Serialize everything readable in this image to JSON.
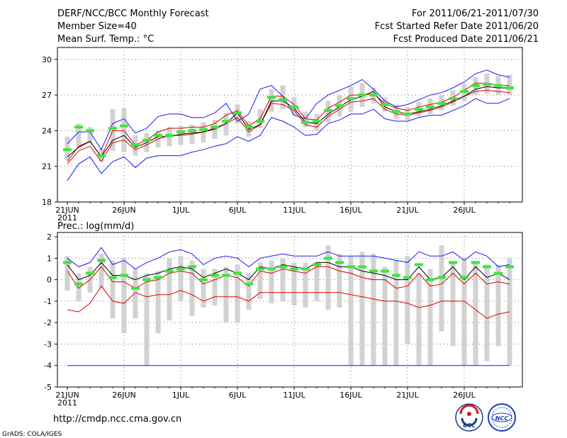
{
  "header": {
    "title": "DERF/NCC/BCC Monthly Forecast",
    "member_size": "Member Size=40",
    "variable": "Mean Surf. Temp.: °C",
    "period": "For 2011/06/21-2011/07/30",
    "refer_date": "Fcst Started Refer Date 2011/06/20",
    "produced_date": "Fcst Produced Date 2011/06/21"
  },
  "footer": {
    "url": "http://cmdp.ncc.cma.gov.cn",
    "credit": "GrADS: COLA/IGES",
    "logo_bcc": "BCC",
    "logo_ncc": "NCC"
  },
  "colors": {
    "box": "#d2d2d2",
    "green": "#3ce63c",
    "blue": "#1a1aee",
    "red": "#e00000",
    "black": "#000000",
    "grid": "#707070"
  },
  "chart_data": [
    {
      "type": "line",
      "title": "Mean Surf. Temp.: °C",
      "xlabel": "",
      "ylabel": "°C",
      "ylim": [
        18,
        31
      ],
      "yticks": [
        18,
        21,
        24,
        27,
        30
      ],
      "x_tick_labels": [
        "21JUN",
        "26JUN",
        "1JUL",
        "6JUL",
        "11JUL",
        "16JUL",
        "21JUL",
        "26JUL"
      ],
      "x_year_label": "2011",
      "days": 40,
      "series": [
        {
          "name": "ensemble box low",
          "values": [
            21.5,
            22.7,
            23.0,
            21.4,
            22.3,
            22.2,
            21.9,
            22.2,
            22.6,
            22.7,
            22.8,
            22.9,
            23.0,
            23.3,
            23.6,
            24.6,
            23.5,
            24.2,
            25.6,
            25.8,
            25.3,
            24.3,
            24.0,
            24.7,
            25.2,
            25.6,
            26.0,
            26.3,
            25.6,
            25.0,
            24.9,
            25.2,
            25.4,
            25.7,
            26.1,
            26.5,
            27.0,
            27.1,
            27.0,
            27.0
          ]
        },
        {
          "name": "ensemble box high",
          "values": [
            23.5,
            24.6,
            24.3,
            22.5,
            25.8,
            25.9,
            23.6,
            23.8,
            24.0,
            24.3,
            24.4,
            24.5,
            24.7,
            24.9,
            25.5,
            26.2,
            24.8,
            25.8,
            27.5,
            27.8,
            26.8,
            25.6,
            25.4,
            26.5,
            27.0,
            27.7,
            28.0,
            27.6,
            26.8,
            26.2,
            26.0,
            26.4,
            26.7,
            27.0,
            27.4,
            27.9,
            28.5,
            28.8,
            28.6,
            28.7
          ]
        },
        {
          "name": "ensemble mean (green)",
          "values": [
            22.4,
            24.3,
            24.0,
            21.9,
            24.2,
            24.4,
            22.8,
            23.2,
            23.6,
            23.6,
            23.9,
            24.0,
            24.1,
            24.3,
            24.8,
            25.5,
            24.3,
            24.8,
            26.8,
            26.6,
            26.0,
            24.7,
            24.8,
            25.7,
            26.1,
            26.7,
            27.0,
            27.0,
            26.2,
            25.6,
            25.4,
            25.8,
            26.0,
            26.3,
            26.7,
            27.3,
            27.8,
            27.9,
            27.8,
            27.6
          ]
        },
        {
          "name": "control (black)",
          "values": [
            21.8,
            22.6,
            23.1,
            21.8,
            23.2,
            23.6,
            22.6,
            23.0,
            23.5,
            23.5,
            23.7,
            23.8,
            23.9,
            24.2,
            24.6,
            25.5,
            24.1,
            24.5,
            26.5,
            26.5,
            25.9,
            24.7,
            24.6,
            25.4,
            26.0,
            26.6,
            26.9,
            27.3,
            26.0,
            25.6,
            25.4,
            25.6,
            25.8,
            26.1,
            26.5,
            26.9,
            27.5,
            27.7,
            27.6,
            27.6
          ]
        },
        {
          "name": "max (blue)",
          "values": [
            22.9,
            23.9,
            23.9,
            22.4,
            24.6,
            25.0,
            23.8,
            24.2,
            25.2,
            25.4,
            25.4,
            25.1,
            25.1,
            25.5,
            26.3,
            24.8,
            25.4,
            27.5,
            27.8,
            26.9,
            25.3,
            25.0,
            26.3,
            27.0,
            27.4,
            27.8,
            28.3,
            27.5,
            26.5,
            26.0,
            26.2,
            26.6,
            27.0,
            27.2,
            27.6,
            28.1,
            28.8,
            29.1,
            28.7,
            28.5
          ]
        },
        {
          "name": "min (blue)",
          "values": [
            19.8,
            21.2,
            21.8,
            20.4,
            21.4,
            21.8,
            20.9,
            21.7,
            21.9,
            21.9,
            21.9,
            22.2,
            22.4,
            22.7,
            22.9,
            23.5,
            23.1,
            23.6,
            25.1,
            24.8,
            24.3,
            23.6,
            23.7,
            24.6,
            24.9,
            25.4,
            25.4,
            25.8,
            25.0,
            24.8,
            24.8,
            25.1,
            25.3,
            25.3,
            25.7,
            26.1,
            26.7,
            26.3,
            26.3,
            26.7
          ]
        },
        {
          "name": "upper (red)",
          "values": [
            21.4,
            22.7,
            23.1,
            21.8,
            24.0,
            24.0,
            22.8,
            23.2,
            23.9,
            24.2,
            24.2,
            24.3,
            24.3,
            24.6,
            25.3,
            25.7,
            24.4,
            25.0,
            26.9,
            26.9,
            26.2,
            25.0,
            24.9,
            25.9,
            26.4,
            27.0,
            27.0,
            27.1,
            26.3,
            25.9,
            25.7,
            26.0,
            26.2,
            26.4,
            26.8,
            27.4,
            28.0,
            28.0,
            27.8,
            27.8
          ]
        },
        {
          "name": "lower (red)",
          "values": [
            21.2,
            22.3,
            22.7,
            21.4,
            23.0,
            23.2,
            22.4,
            22.8,
            23.3,
            23.6,
            23.6,
            23.7,
            23.9,
            24.1,
            24.6,
            25.1,
            23.9,
            24.5,
            26.3,
            26.2,
            25.7,
            24.5,
            24.3,
            25.2,
            25.8,
            26.4,
            26.5,
            26.7,
            25.8,
            25.4,
            25.3,
            25.5,
            25.7,
            26.0,
            26.4,
            26.9,
            27.3,
            27.4,
            27.3,
            27.2
          ]
        }
      ]
    },
    {
      "type": "line",
      "title": "Prec.: log(mm/d)",
      "xlabel": "",
      "ylabel": "log(mm/d)",
      "ylim": [
        -5,
        2.2
      ],
      "yticks": [
        -5,
        -4,
        -3,
        -2,
        -1,
        0,
        1,
        2
      ],
      "x_tick_labels": [
        "21JUN",
        "26JUN",
        "1JUL",
        "6JUL",
        "11JUL",
        "16JUL",
        "21JUL",
        "26JUL"
      ],
      "x_year_label": "2011",
      "days": 40,
      "series": [
        {
          "name": "ensemble box low",
          "values": [
            -0.5,
            -1.0,
            -0.6,
            -0.4,
            -1.8,
            -2.5,
            -1.8,
            -4.0,
            -2.5,
            -1.9,
            -1.0,
            -1.7,
            -1.3,
            -1.2,
            -2.0,
            -2.0,
            -1.4,
            -0.9,
            -1.1,
            -1.0,
            -1.2,
            -1.3,
            -1.0,
            -1.4,
            -1.3,
            -4.0,
            -4.0,
            -4.0,
            -4.0,
            -4.0,
            -3.0,
            -4.0,
            -4.0,
            -2.4,
            -3.1,
            -4.0,
            -4.0,
            -3.8,
            -3.1,
            -4.0
          ]
        },
        {
          "name": "ensemble box high",
          "values": [
            1.1,
            0.3,
            0.6,
            1.2,
            0.9,
            1.0,
            0.5,
            0.3,
            0.4,
            1.0,
            1.1,
            0.9,
            0.5,
            0.5,
            0.6,
            0.7,
            0.3,
            0.8,
            0.9,
            1.0,
            0.8,
            0.8,
            0.8,
            1.6,
            1.2,
            1.1,
            1.3,
            1.2,
            0.6,
            0.9,
            1.1,
            0.3,
            0.5,
            1.6,
            0.8,
            1.0,
            0.8,
            0.7,
            0.7,
            1.0
          ]
        },
        {
          "name": "ensemble mean (green)",
          "values": [
            0.8,
            -0.2,
            0.3,
            0.9,
            0.1,
            0.2,
            -0.4,
            0.0,
            0.1,
            0.4,
            0.5,
            0.6,
            0.0,
            0.2,
            0.2,
            0.3,
            -0.2,
            0.5,
            0.5,
            0.6,
            0.5,
            0.5,
            0.7,
            1.0,
            0.8,
            0.6,
            0.6,
            0.4,
            0.4,
            0.2,
            0.1,
            0.7,
            0.0,
            0.1,
            0.8,
            0.1,
            0.8,
            0.6,
            0.3,
            0.6
          ]
        },
        {
          "name": "control (black)",
          "values": [
            0.7,
            0.0,
            0.2,
            0.8,
            0.2,
            0.2,
            0.0,
            0.2,
            0.3,
            0.5,
            0.6,
            0.5,
            0.1,
            0.3,
            0.5,
            0.3,
            0.0,
            0.6,
            0.5,
            0.7,
            0.6,
            0.5,
            0.8,
            0.8,
            0.6,
            0.6,
            0.4,
            0.3,
            0.2,
            0.0,
            0.0,
            0.6,
            0.0,
            0.1,
            0.6,
            0.0,
            0.6,
            0.1,
            0.3,
            0.0
          ]
        },
        {
          "name": "max (blue)",
          "values": [
            1.0,
            0.6,
            0.8,
            1.5,
            0.7,
            0.9,
            0.5,
            0.8,
            1.0,
            1.3,
            1.4,
            1.2,
            0.7,
            1.0,
            1.1,
            1.0,
            0.6,
            1.0,
            1.1,
            1.2,
            1.1,
            1.1,
            1.1,
            1.3,
            1.1,
            1.1,
            1.1,
            1.1,
            1.0,
            0.9,
            0.8,
            1.3,
            1.1,
            1.1,
            1.3,
            0.9,
            1.3,
            1.1,
            0.6,
            0.7
          ]
        },
        {
          "name": "min (blue)",
          "values": [
            -4.0,
            -4.0,
            -4.0,
            -4.0,
            -4.0,
            -4.0,
            -4.0,
            -4.0,
            -4.0,
            -4.0,
            -4.0,
            -4.0,
            -4.0,
            -4.0,
            -4.0,
            -4.0,
            -4.0,
            -4.0,
            -4.0,
            -4.0,
            -4.0,
            -4.0,
            -4.0,
            -4.0,
            -4.0,
            -4.0,
            -4.0,
            -4.0,
            -4.0,
            -4.0,
            -4.0,
            -4.0,
            -4.0,
            -4.0,
            -4.0,
            -4.0,
            -4.0,
            -4.0,
            -4.0,
            -4.0
          ]
        },
        {
          "name": "upper (red)",
          "values": [
            0.4,
            -0.4,
            0.0,
            0.6,
            -0.1,
            -0.1,
            -0.4,
            -0.1,
            0.0,
            0.3,
            0.4,
            0.3,
            -0.2,
            0.0,
            0.2,
            0.1,
            -0.3,
            0.4,
            0.3,
            0.5,
            0.4,
            0.3,
            0.6,
            0.6,
            0.4,
            0.3,
            0.1,
            0.0,
            0.0,
            -0.4,
            -0.3,
            0.3,
            -0.3,
            -0.2,
            0.3,
            -0.2,
            0.3,
            -0.2,
            -0.1,
            -0.2
          ]
        },
        {
          "name": "lower (red)",
          "values": [
            -1.4,
            -1.5,
            -1.1,
            -0.3,
            -1.0,
            -1.1,
            -0.6,
            -0.8,
            -0.7,
            -0.7,
            -0.5,
            -0.7,
            -1.0,
            -0.8,
            -0.8,
            -0.8,
            -1.0,
            -0.6,
            -0.6,
            -0.6,
            -0.6,
            -0.6,
            -0.6,
            -0.6,
            -0.6,
            -0.7,
            -0.8,
            -0.9,
            -1.0,
            -1.0,
            -1.1,
            -1.3,
            -1.2,
            -1.0,
            -1.0,
            -1.0,
            -1.4,
            -1.8,
            -1.6,
            -1.5
          ]
        }
      ]
    }
  ]
}
